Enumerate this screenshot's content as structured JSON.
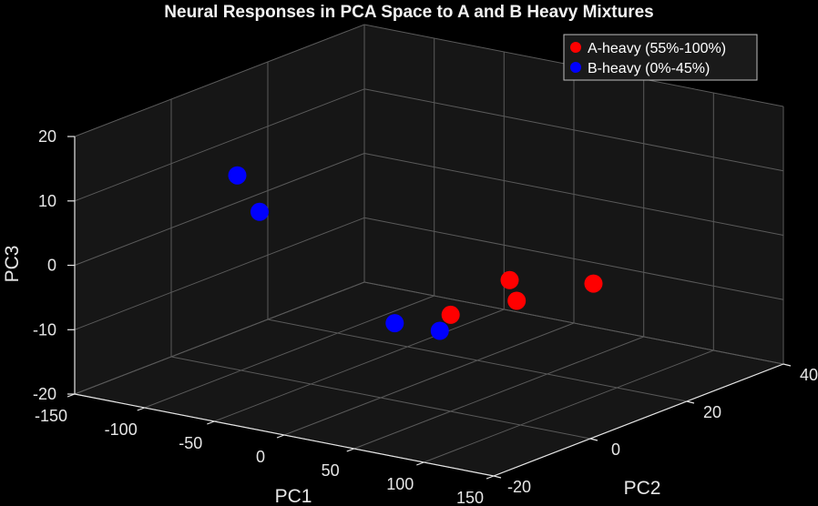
{
  "chart_data": {
    "type": "scatter",
    "projection": "3d",
    "title": "Neural Responses in PCA Space to A and B Heavy Mixtures",
    "xlabel": "PC1",
    "ylabel": "PC2",
    "zlabel": "PC3",
    "xlim": [
      -150,
      150
    ],
    "ylim": [
      -20,
      40
    ],
    "zlim": [
      -20,
      20
    ],
    "xticks": [
      -150,
      -100,
      -50,
      0,
      50,
      100,
      150
    ],
    "yticks": [
      -20,
      0,
      20,
      40
    ],
    "zticks": [
      -20,
      -10,
      0,
      10,
      20
    ],
    "grid": true,
    "legend": "top-right",
    "series": [
      {
        "name": "A-heavy (55%-100%)",
        "color": "#ff0000",
        "points": [
          {
            "x": 135,
            "y": 5,
            "z": 2
          },
          {
            "x": 80,
            "y": 5,
            "z": -3
          },
          {
            "x": 50,
            "y": 0,
            "z": -5
          },
          {
            "x": 75,
            "y": 5,
            "z": 0
          }
        ]
      },
      {
        "name": "B-heavy (0%-45%)",
        "color": "#0000ff",
        "points": [
          {
            "x": -120,
            "y": 5,
            "z": 8
          },
          {
            "x": -104,
            "y": 5,
            "z": 3
          },
          {
            "x": 25,
            "y": 5,
            "z": -10
          },
          {
            "x": 10,
            "y": 0,
            "z": -8
          }
        ]
      }
    ]
  },
  "colors": {
    "background": "#000000",
    "pane": "#161616",
    "grid": "#5a5a5a",
    "text": "#e6e6e6"
  }
}
